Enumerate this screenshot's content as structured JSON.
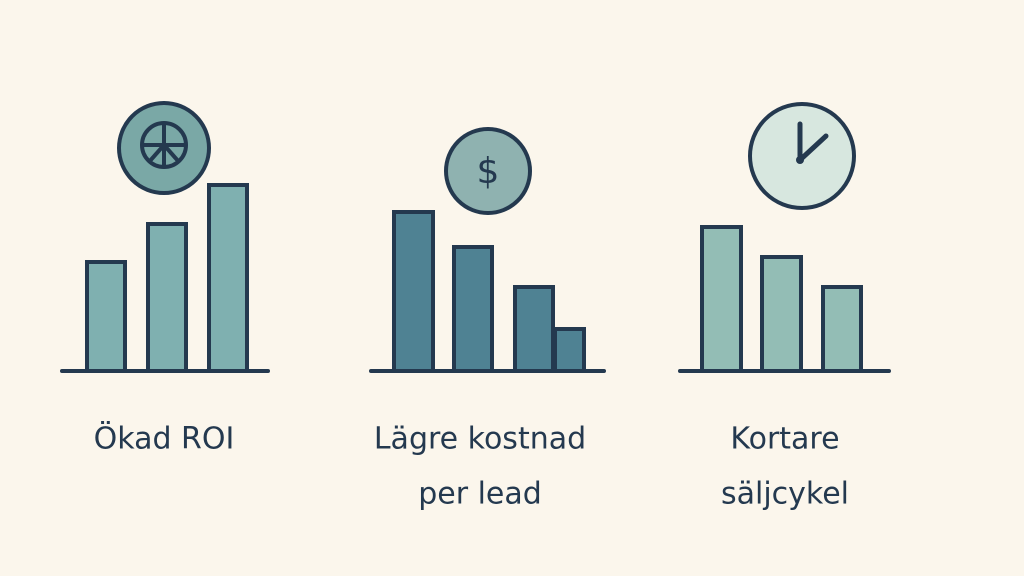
{
  "panels": [
    {
      "label_lines": [
        "Ökad ROI"
      ]
    },
    {
      "icon": "$",
      "label_lines": [
        "Lägre kostnad",
        "per lead"
      ]
    },
    {
      "label_lines": [
        "Kortare",
        "säljcykel"
      ]
    }
  ]
}
